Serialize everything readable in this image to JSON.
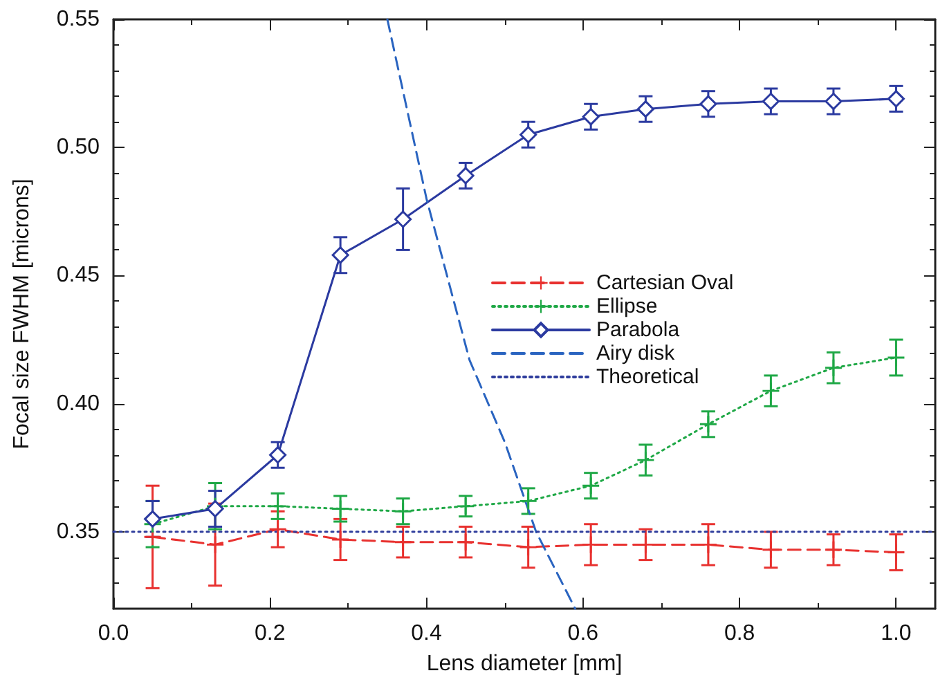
{
  "chart_data": {
    "type": "line",
    "xlabel": "Lens diameter [mm]",
    "ylabel": "Focal size FWHM [microns]",
    "xlim": [
      0,
      1.05
    ],
    "ylim": [
      0.32,
      0.55
    ],
    "xticks": [
      {
        "value": 0,
        "label": "0.0"
      },
      0.2,
      0.4,
      0.6,
      0.8,
      {
        "value": 1,
        "label": "1.0"
      }
    ],
    "yticks": [
      0.35,
      {
        "value": 0.4,
        "label": "0.40"
      },
      0.45,
      {
        "value": 0.5,
        "label": "0.50"
      },
      0.55
    ],
    "grid": false,
    "legend": "right",
    "x": [
      0.05,
      0.13,
      0.21,
      0.29,
      0.37,
      0.45,
      0.53,
      0.61,
      0.68,
      0.76,
      0.84,
      0.92,
      1.0
    ],
    "series": [
      {
        "name": "Cartesian Oval",
        "color": "#e8312f",
        "marker": "cross",
        "line_style": "dashed",
        "values": [
          0.348,
          0.345,
          0.351,
          0.347,
          0.346,
          0.346,
          0.344,
          0.345,
          0.345,
          0.345,
          0.343,
          0.343,
          0.342
        ],
        "errors": [
          0.02,
          0.016,
          0.007,
          0.008,
          0.006,
          0.006,
          0.008,
          0.008,
          0.006,
          0.008,
          0.007,
          0.006,
          0.007
        ]
      },
      {
        "name": "Ellipse",
        "color": "#1fa846",
        "marker": "cross",
        "line_style": "dotted",
        "values": [
          0.353,
          0.36,
          0.36,
          0.359,
          0.358,
          0.36,
          0.362,
          0.368,
          0.378,
          0.392,
          0.405,
          0.414,
          0.418
        ],
        "errors": [
          0.009,
          0.009,
          0.005,
          0.005,
          0.005,
          0.004,
          0.005,
          0.005,
          0.006,
          0.005,
          0.006,
          0.006,
          0.007
        ]
      },
      {
        "name": "Parabola",
        "color": "#2b3aa0",
        "marker": "diamond",
        "line_style": "solid",
        "values": [
          0.355,
          0.359,
          0.38,
          0.458,
          0.472,
          0.489,
          0.505,
          0.512,
          0.515,
          0.517,
          0.518,
          0.518,
          0.519
        ],
        "errors": [
          0.007,
          0.007,
          0.005,
          0.007,
          0.012,
          0.005,
          0.005,
          0.005,
          0.005,
          0.005,
          0.005,
          0.005,
          0.005
        ]
      },
      {
        "name": "Airy disk",
        "color": "#2a64c0",
        "marker": "none",
        "line_style": "dashed",
        "x": [
          0.35,
          0.4,
          0.455,
          0.5,
          0.54,
          0.59
        ],
        "values": [
          0.55,
          0.48,
          0.417,
          0.385,
          0.35,
          0.32
        ]
      },
      {
        "name": "Theoretical",
        "color": "#2e3c9c",
        "marker": "none",
        "line_style": "dotted",
        "x": [
          0,
          1.05
        ],
        "values": [
          0.35,
          0.35
        ]
      }
    ]
  }
}
